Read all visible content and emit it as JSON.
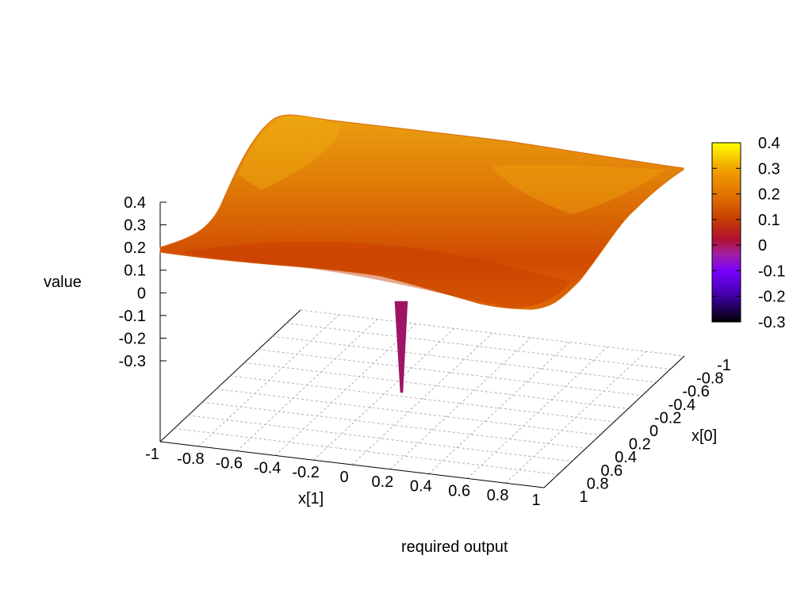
{
  "chart_data": {
    "type": "surface3d",
    "title": "",
    "caption": "required output",
    "xlabel": "x[1]",
    "ylabel": "x[0]",
    "zlabel": "value",
    "xlim": [
      -1,
      1
    ],
    "ylim": [
      -1,
      1
    ],
    "zlim": [
      -0.3,
      0.4
    ],
    "grid": true,
    "x_ticks": [
      "-1",
      "-0.8",
      "-0.6",
      "-0.4",
      "-0.2",
      "0",
      "0.2",
      "0.4",
      "0.6",
      "0.8",
      "1"
    ],
    "y_ticks": [
      "-1",
      "-0.8",
      "-0.6",
      "-0.4",
      "-0.2",
      "0",
      "0.2",
      "0.4",
      "0.6",
      "0.8",
      "1"
    ],
    "z_ticks": [
      "0.4",
      "0.3",
      "0.2",
      "0.1",
      "0",
      "-0.1",
      "-0.2",
      "-0.3"
    ],
    "colorbar": {
      "range": [
        -0.3,
        0.4
      ],
      "ticks": [
        "0.4",
        "0.3",
        "0.2",
        "0.1",
        "0",
        "-0.1",
        "-0.2",
        "-0.3"
      ],
      "palette": [
        "#000000",
        "#3c00a0",
        "#7800ff",
        "#a020a0",
        "#b01030",
        "#c84000",
        "#e07000",
        "#f0a000",
        "#ffff00"
      ]
    },
    "surface": {
      "typical_value": 0.2,
      "spike": {
        "x": 0.0,
        "y": 0.3,
        "value": -0.3
      }
    }
  }
}
